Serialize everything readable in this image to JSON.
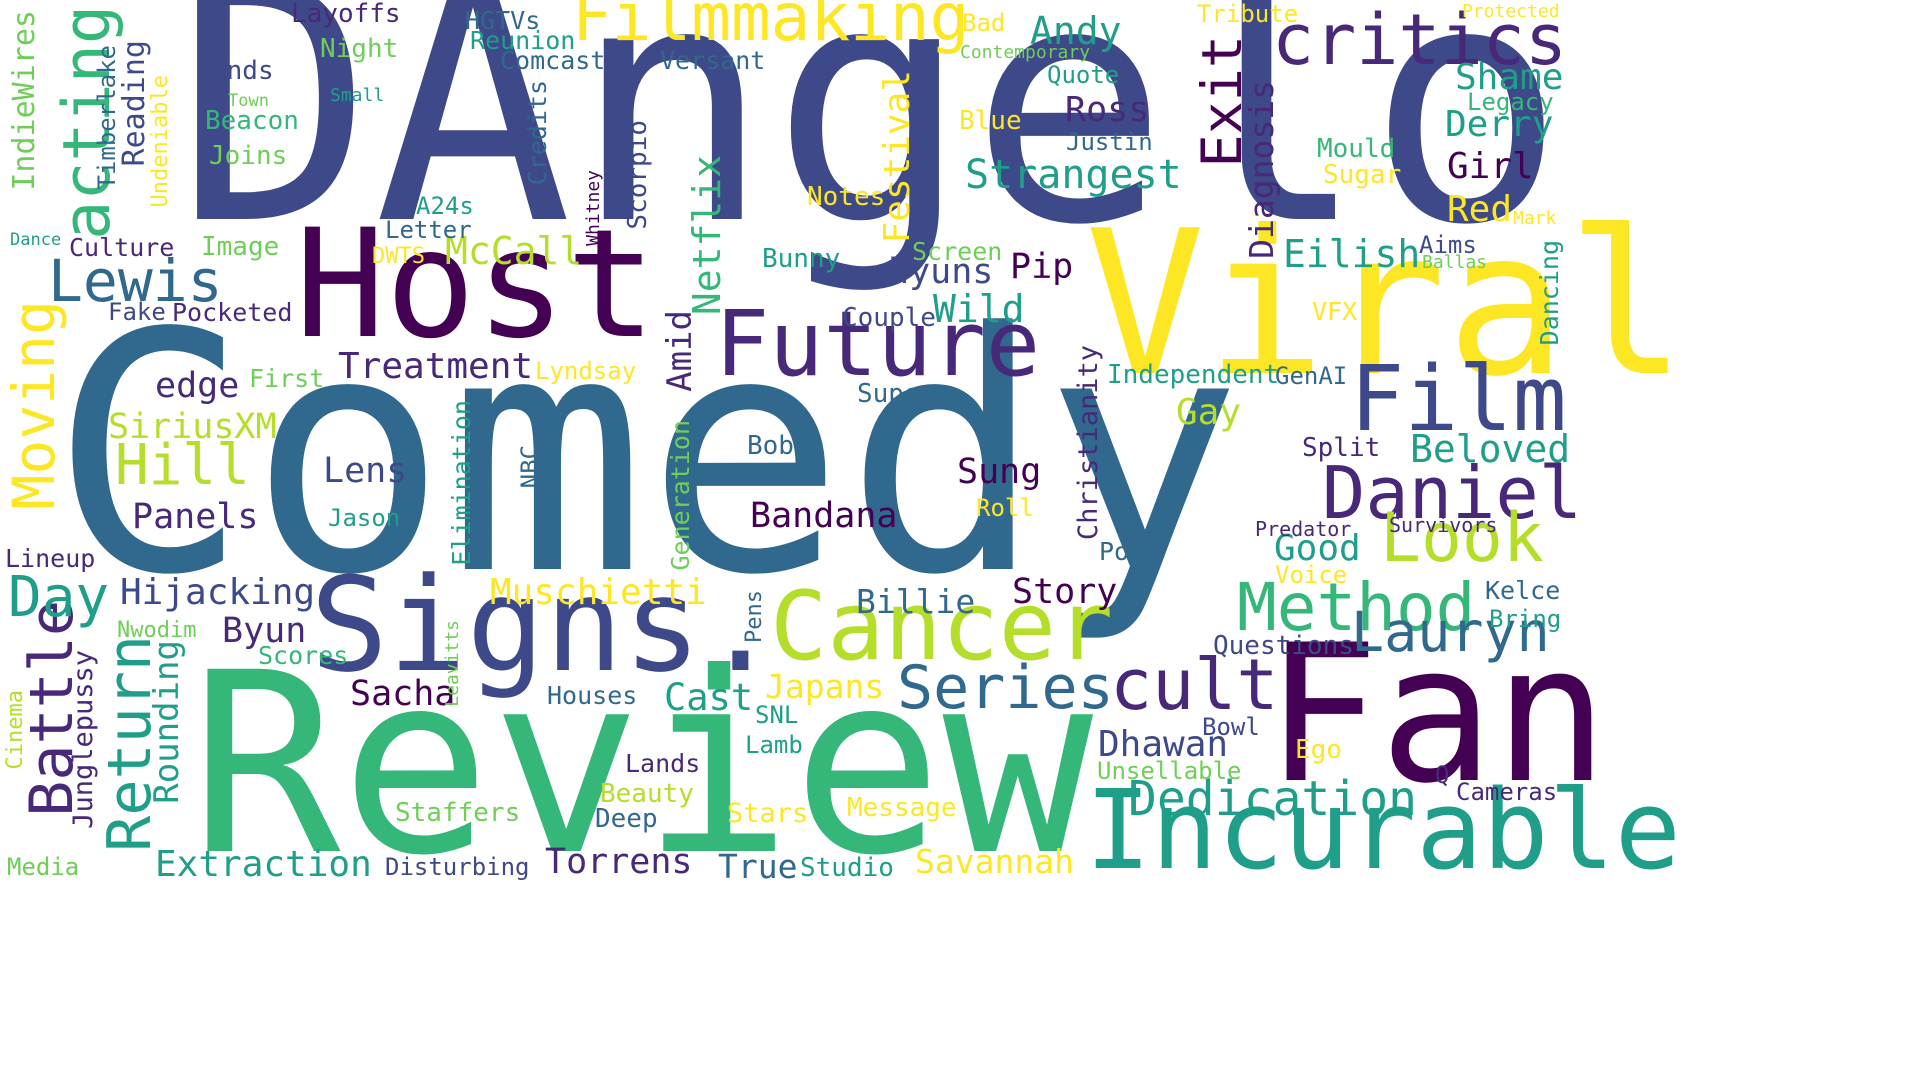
{
  "palette": {
    "dark_purple": "#440154",
    "indigo": "#482878",
    "blue": "#3e4989",
    "slate": "#31688e",
    "teal": "#26828e",
    "sea": "#1f9e89",
    "green": "#35b779",
    "lime": "#6ece58",
    "yellow_green": "#b5de2b",
    "yellow": "#fde725"
  },
  "words": [
    {
      "text": "DAngelo",
      "color": "blue"
    },
    {
      "text": "Comedy",
      "color": "slate"
    },
    {
      "text": "Review",
      "color": "green"
    },
    {
      "text": "Viral",
      "color": "yellow"
    },
    {
      "text": "Host",
      "color": "dark_purple"
    },
    {
      "text": "Fan",
      "color": "dark_purple"
    },
    {
      "text": "Signs.",
      "color": "blue"
    },
    {
      "text": "Incurable",
      "color": "sea"
    },
    {
      "text": "Cancer",
      "color": "yellow_green"
    },
    {
      "text": "Future",
      "color": "indigo"
    },
    {
      "text": "Film",
      "color": "blue"
    },
    {
      "text": "Daniel",
      "color": "indigo"
    },
    {
      "text": "Method",
      "color": "green"
    },
    {
      "text": "Filmmaking",
      "color": "yellow"
    },
    {
      "text": "critics",
      "color": "indigo"
    },
    {
      "text": "cult",
      "color": "indigo"
    },
    {
      "text": "Series",
      "color": "slate"
    },
    {
      "text": "Lauryn",
      "color": "slate"
    },
    {
      "text": "Look",
      "color": "yellow_green"
    },
    {
      "text": "Dedication",
      "color": "sea"
    },
    {
      "text": "Return",
      "color": "sea"
    },
    {
      "text": "Battle",
      "color": "indigo"
    },
    {
      "text": "acting",
      "color": "green"
    },
    {
      "text": "Moving",
      "color": "yellow"
    },
    {
      "text": "Lewis",
      "color": "slate"
    },
    {
      "text": "Day",
      "color": "sea"
    },
    {
      "text": "Exit",
      "color": "dark_purple"
    },
    {
      "text": "Hill",
      "color": "yellow_green"
    },
    {
      "text": "Strangest",
      "color": "sea"
    },
    {
      "text": "Andy",
      "color": "sea"
    },
    {
      "text": "Extraction",
      "color": "sea"
    },
    {
      "text": "Torrens",
      "color": "indigo"
    },
    {
      "text": "Muschietti",
      "color": "yellow"
    },
    {
      "text": "Savannah",
      "color": "yellow"
    },
    {
      "text": "Bandana",
      "color": "dark_purple"
    },
    {
      "text": "Hijacking",
      "color": "blue"
    },
    {
      "text": "Treatment",
      "color": "indigo"
    },
    {
      "text": "Diagnosis",
      "color": "indigo"
    },
    {
      "text": "Eilish",
      "color": "sea"
    },
    {
      "text": "Beloved",
      "color": "sea"
    },
    {
      "text": "Dhawan",
      "color": "blue"
    },
    {
      "text": "Lens",
      "color": "blue"
    },
    {
      "text": "Sung",
      "color": "dark_purple"
    },
    {
      "text": "Cast",
      "color": "sea"
    },
    {
      "text": "Japans",
      "color": "yellow"
    },
    {
      "text": "Ross",
      "color": "indigo"
    },
    {
      "text": "Netflix",
      "color": "green"
    },
    {
      "text": "Panels",
      "color": "indigo"
    },
    {
      "text": "Byun",
      "color": "indigo"
    },
    {
      "text": "Sacha",
      "color": "dark_purple"
    },
    {
      "text": "Billie",
      "color": "slate"
    },
    {
      "text": "Story",
      "color": "dark_purple"
    },
    {
      "text": "Rounding",
      "color": "sea"
    },
    {
      "text": "Festival",
      "color": "yellow"
    },
    {
      "text": "McCall",
      "color": "yellow_green"
    },
    {
      "text": "hyuns",
      "color": "blue"
    },
    {
      "text": "Wild",
      "color": "sea"
    },
    {
      "text": "SiriusXM",
      "color": "yellow_green"
    },
    {
      "text": "edge",
      "color": "indigo"
    },
    {
      "text": "Amid",
      "color": "indigo"
    },
    {
      "text": "Pip",
      "color": "dark_purple"
    },
    {
      "text": "Good",
      "color": "sea"
    },
    {
      "text": "Gay",
      "color": "yellow_green"
    },
    {
      "text": "Girl",
      "color": "dark_purple"
    },
    {
      "text": "Shame",
      "color": "sea"
    },
    {
      "text": "Derry",
      "color": "sea"
    },
    {
      "text": "Red",
      "color": "yellow"
    },
    {
      "text": "Reading",
      "color": "blue"
    },
    {
      "text": "Junglepussy",
      "color": "indigo"
    },
    {
      "text": "Layoffs",
      "color": "indigo"
    },
    {
      "text": "HGTVs",
      "color": "slate"
    },
    {
      "text": "Reunion",
      "color": "sea"
    },
    {
      "text": "Comcast",
      "color": "slate"
    },
    {
      "text": "Versant",
      "color": "slate"
    },
    {
      "text": "Night",
      "color": "lime"
    },
    {
      "text": "Ends",
      "color": "blue"
    },
    {
      "text": "Beacon",
      "color": "green"
    },
    {
      "text": "Joins",
      "color": "lime"
    },
    {
      "text": "Town",
      "color": "lime"
    },
    {
      "text": "Small",
      "color": "sea"
    },
    {
      "text": "Timberlake",
      "color": "slate"
    },
    {
      "text": "Undeniable",
      "color": "yellow"
    },
    {
      "text": "IndieWires",
      "color": "lime"
    },
    {
      "text": "Credits",
      "color": "slate"
    },
    {
      "text": "Scorpio",
      "color": "blue"
    },
    {
      "text": "Whitney",
      "color": "dark_purple"
    },
    {
      "text": "A24s",
      "color": "sea"
    },
    {
      "text": "Letter",
      "color": "slate"
    },
    {
      "text": "DWTS",
      "color": "yellow"
    },
    {
      "text": "Image",
      "color": "lime"
    },
    {
      "text": "Culture",
      "color": "indigo"
    },
    {
      "text": "Dance",
      "color": "sea"
    },
    {
      "text": "Fake",
      "color": "blue"
    },
    {
      "text": "Pocketed",
      "color": "indigo"
    },
    {
      "text": "First",
      "color": "lime"
    },
    {
      "text": "Lyndsay",
      "color": "yellow"
    },
    {
      "text": "Notes",
      "color": "yellow"
    },
    {
      "text": "Bunny",
      "color": "sea"
    },
    {
      "text": "Screen",
      "color": "lime"
    },
    {
      "text": "Couple",
      "color": "blue"
    },
    {
      "text": "Super",
      "color": "slate"
    },
    {
      "text": "Blue",
      "color": "yellow"
    },
    {
      "text": "Bad",
      "color": "yellow"
    },
    {
      "text": "Contemporary",
      "color": "lime"
    },
    {
      "text": "Quote",
      "color": "sea"
    },
    {
      "text": "Justin",
      "color": "slate"
    },
    {
      "text": "Tribute",
      "color": "yellow"
    },
    {
      "text": "Protected",
      "color": "yellow"
    },
    {
      "text": "Legacy",
      "color": "green"
    },
    {
      "text": "Mould",
      "color": "green"
    },
    {
      "text": "Sugar",
      "color": "yellow"
    },
    {
      "text": "Mark",
      "color": "yellow"
    },
    {
      "text": "Aims",
      "color": "blue"
    },
    {
      "text": "Ballas",
      "color": "lime"
    },
    {
      "text": "Dancing",
      "color": "sea"
    },
    {
      "text": "VFX",
      "color": "yellow"
    },
    {
      "text": "Independent",
      "color": "sea"
    },
    {
      "text": "GenAI",
      "color": "slate"
    },
    {
      "text": "Christianity",
      "color": "indigo"
    },
    {
      "text": "Split",
      "color": "indigo"
    },
    {
      "text": "Bob",
      "color": "slate"
    },
    {
      "text": "NBC",
      "color": "slate"
    },
    {
      "text": "Elimination",
      "color": "sea"
    },
    {
      "text": "Generation",
      "color": "lime"
    },
    {
      "text": "Jason",
      "color": "sea"
    },
    {
      "text": "Roll",
      "color": "yellow"
    },
    {
      "text": "Pop",
      "color": "slate"
    },
    {
      "text": "Voice",
      "color": "yellow"
    },
    {
      "text": "Predator",
      "color": "indigo"
    },
    {
      "text": "Survivors",
      "color": "indigo"
    },
    {
      "text": "Kelce",
      "color": "slate"
    },
    {
      "text": "Bring",
      "color": "sea"
    },
    {
      "text": "Questions",
      "color": "blue"
    },
    {
      "text": "Lineup",
      "color": "indigo"
    },
    {
      "text": "Nwodim",
      "color": "lime"
    },
    {
      "text": "Scores",
      "color": "green"
    },
    {
      "text": "Leavitts",
      "color": "lime"
    },
    {
      "text": "Houses",
      "color": "slate"
    },
    {
      "text": "Pens",
      "color": "slate"
    },
    {
      "text": "SNL",
      "color": "sea"
    },
    {
      "text": "Lamb",
      "color": "sea"
    },
    {
      "text": "Bowl",
      "color": "blue"
    },
    {
      "text": "Ego",
      "color": "yellow"
    },
    {
      "text": "Unsellable",
      "color": "lime"
    },
    {
      "text": "Q",
      "color": "indigo"
    },
    {
      "text": "Cameras",
      "color": "indigo"
    },
    {
      "text": "Lands",
      "color": "indigo"
    },
    {
      "text": "Beauty",
      "color": "yellow_green"
    },
    {
      "text": "Deep",
      "color": "slate"
    },
    {
      "text": "Stars",
      "color": "yellow"
    },
    {
      "text": "Message",
      "color": "yellow"
    },
    {
      "text": "Staffers",
      "color": "lime"
    },
    {
      "text": "Disturbing",
      "color": "blue"
    },
    {
      "text": "True",
      "color": "slate"
    },
    {
      "text": "Studio",
      "color": "sea"
    },
    {
      "text": "Media",
      "color": "lime"
    },
    {
      "text": "Cinema",
      "color": "yellow_green"
    }
  ]
}
